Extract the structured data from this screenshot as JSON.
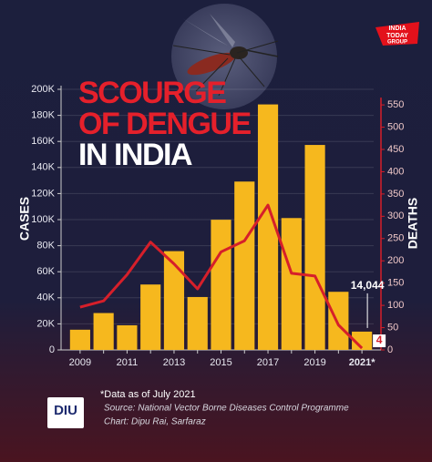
{
  "chart_data": {
    "type": "bar-line",
    "title": [
      "SCOURGE",
      "OF DENGUE",
      "IN INDIA"
    ],
    "brand": [
      "INDIA",
      "TODAY",
      "GROUP"
    ],
    "ylabel": "CASES",
    "y2label": "DEATHS",
    "categories": [
      "2009",
      null,
      "2011",
      null,
      "2013",
      null,
      "2015",
      null,
      "2017",
      null,
      "2019",
      null,
      "2021*"
    ],
    "series": [
      {
        "name": "Cases",
        "type": "bar",
        "color": "#f6b81e",
        "values": [
          15500,
          28300,
          18900,
          50200,
          75800,
          40600,
          99900,
          129200,
          188400,
          101200,
          157300,
          44600,
          14044
        ],
        "value_labels": [
          null,
          null,
          null,
          null,
          null,
          null,
          null,
          null,
          null,
          null,
          null,
          null,
          "14,044"
        ]
      },
      {
        "name": "Deaths",
        "type": "line",
        "color": "#d61f2a",
        "axis": "y2",
        "values": [
          96,
          110,
          169,
          242,
          193,
          137,
          220,
          245,
          325,
          172,
          166,
          56,
          4
        ]
      }
    ],
    "ylim": [
      0,
      200000
    ],
    "yticks": [
      {
        "value": 0,
        "label": "0"
      },
      {
        "value": 20000,
        "label": "20K"
      },
      {
        "value": 40000,
        "label": "40K"
      },
      {
        "value": 60000,
        "label": "60K"
      },
      {
        "value": 80000,
        "label": "80K"
      },
      {
        "value": 100000,
        "label": "100K"
      },
      {
        "value": 120000,
        "label": "120K"
      },
      {
        "value": 140000,
        "label": "140K"
      },
      {
        "value": 160000,
        "label": "160K"
      },
      {
        "value": 180000,
        "label": "180K"
      },
      {
        "value": 200000,
        "label": "200K"
      }
    ],
    "y2lim": [
      0,
      585
    ],
    "y2ticks": [
      0,
      50,
      100,
      150,
      200,
      250,
      300,
      350,
      400,
      450,
      500,
      550
    ],
    "grid": true,
    "footnote": "*Data as of July 2021",
    "source": "Source: National Vector Borne Diseases Control Programme",
    "credit": "Chart: Dipu Rai, Sarfaraz",
    "logo": "DIU"
  }
}
